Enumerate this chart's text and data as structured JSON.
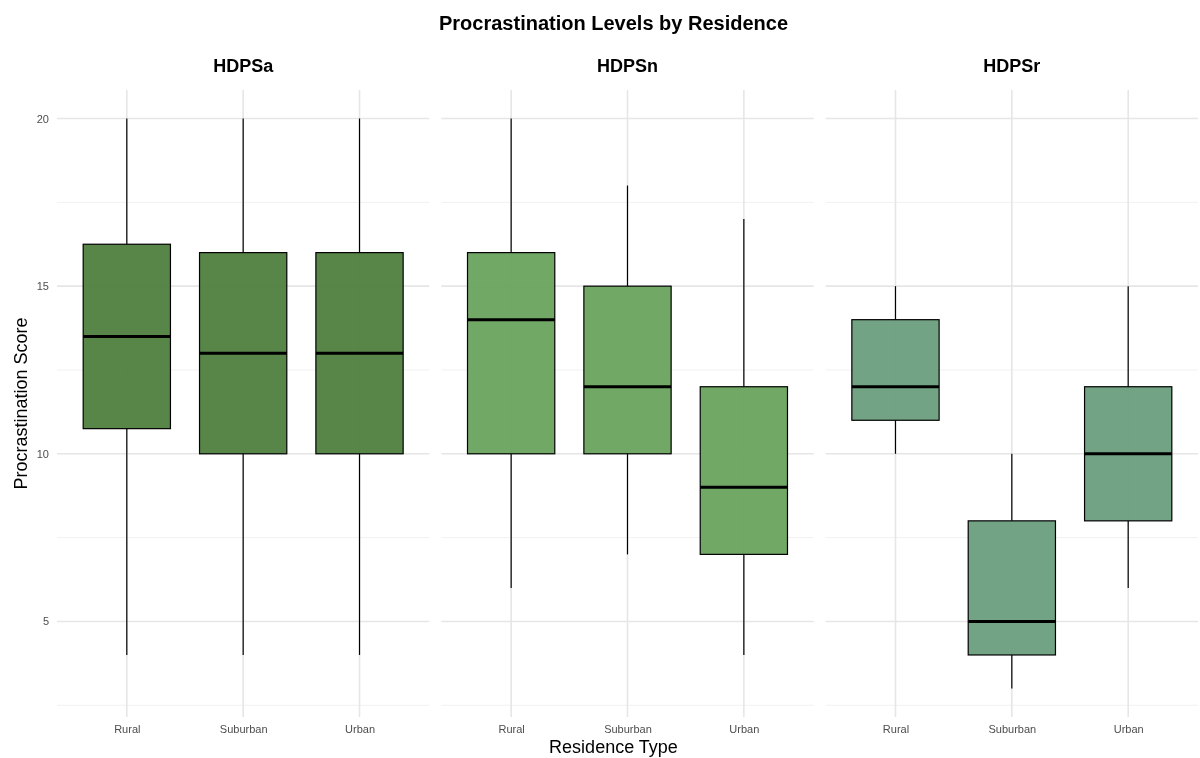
{
  "chart_data": [
    {
      "type": "box",
      "title": "HDPSa",
      "annotations": [
        "Procrastination Levels by Residence"
      ],
      "ylabel": "Procrastination Score",
      "categories": [
        "Rural",
        "Suburban",
        "Urban"
      ],
      "color": "#4f7f3f",
      "ylim": [
        2.15,
        20.85
      ],
      "yticks": [
        {
          "value": 2.5,
          "label": null
        },
        5,
        {
          "value": 7.5,
          "label": null
        },
        10,
        {
          "value": 12.5,
          "label": null
        },
        15,
        {
          "value": 17.5,
          "label": null
        },
        20
      ],
      "grid": true,
      "boxes": [
        {
          "low": 4,
          "q1": 10.75,
          "median": 13.5,
          "q3": 16.25,
          "high": 20
        },
        {
          "low": 4,
          "q1": 10,
          "median": 13,
          "q3": 16,
          "high": 20
        },
        {
          "low": 4,
          "q1": 10,
          "median": 13,
          "q3": 16,
          "high": 20
        }
      ]
    },
    {
      "type": "box",
      "title": "HDPSn",
      "xlabel": "Residence Type",
      "categories": [
        "Rural",
        "Suburban",
        "Urban"
      ],
      "color": "#6aa35e",
      "ylim": [
        2.15,
        20.85
      ],
      "yticks": [
        {
          "value": 2.5,
          "label": null
        },
        5,
        {
          "value": 7.5,
          "label": null
        },
        10,
        {
          "value": 12.5,
          "label": null
        },
        15,
        {
          "value": 17.5,
          "label": null
        },
        20
      ],
      "grid": true,
      "tick_labels": "x",
      "boxes": [
        {
          "low": 6,
          "q1": 10,
          "median": 14,
          "q3": 16,
          "high": 20
        },
        {
          "low": 7,
          "q1": 10,
          "median": 12,
          "q3": 15,
          "high": 18
        },
        {
          "low": 4,
          "q1": 7,
          "median": 9,
          "q3": 12,
          "high": 17
        }
      ]
    },
    {
      "type": "box",
      "title": "HDPSr",
      "categories": [
        "Rural",
        "Suburban",
        "Urban"
      ],
      "color": "#6b9e7e",
      "ylim": [
        2.15,
        20.85
      ],
      "yticks": [
        {
          "value": 2.5,
          "label": null
        },
        5,
        {
          "value": 7.5,
          "label": null
        },
        10,
        {
          "value": 12.5,
          "label": null
        },
        15,
        {
          "value": 17.5,
          "label": null
        },
        20
      ],
      "grid": true,
      "tick_labels": "x",
      "boxes": [
        {
          "low": 10,
          "q1": 11,
          "median": 12,
          "q3": 14,
          "high": 15
        },
        {
          "low": 3,
          "q1": 4,
          "median": 5,
          "q3": 8,
          "high": 10
        },
        {
          "low": 6,
          "q1": 8,
          "median": 10,
          "q3": 12,
          "high": 15
        }
      ]
    }
  ]
}
